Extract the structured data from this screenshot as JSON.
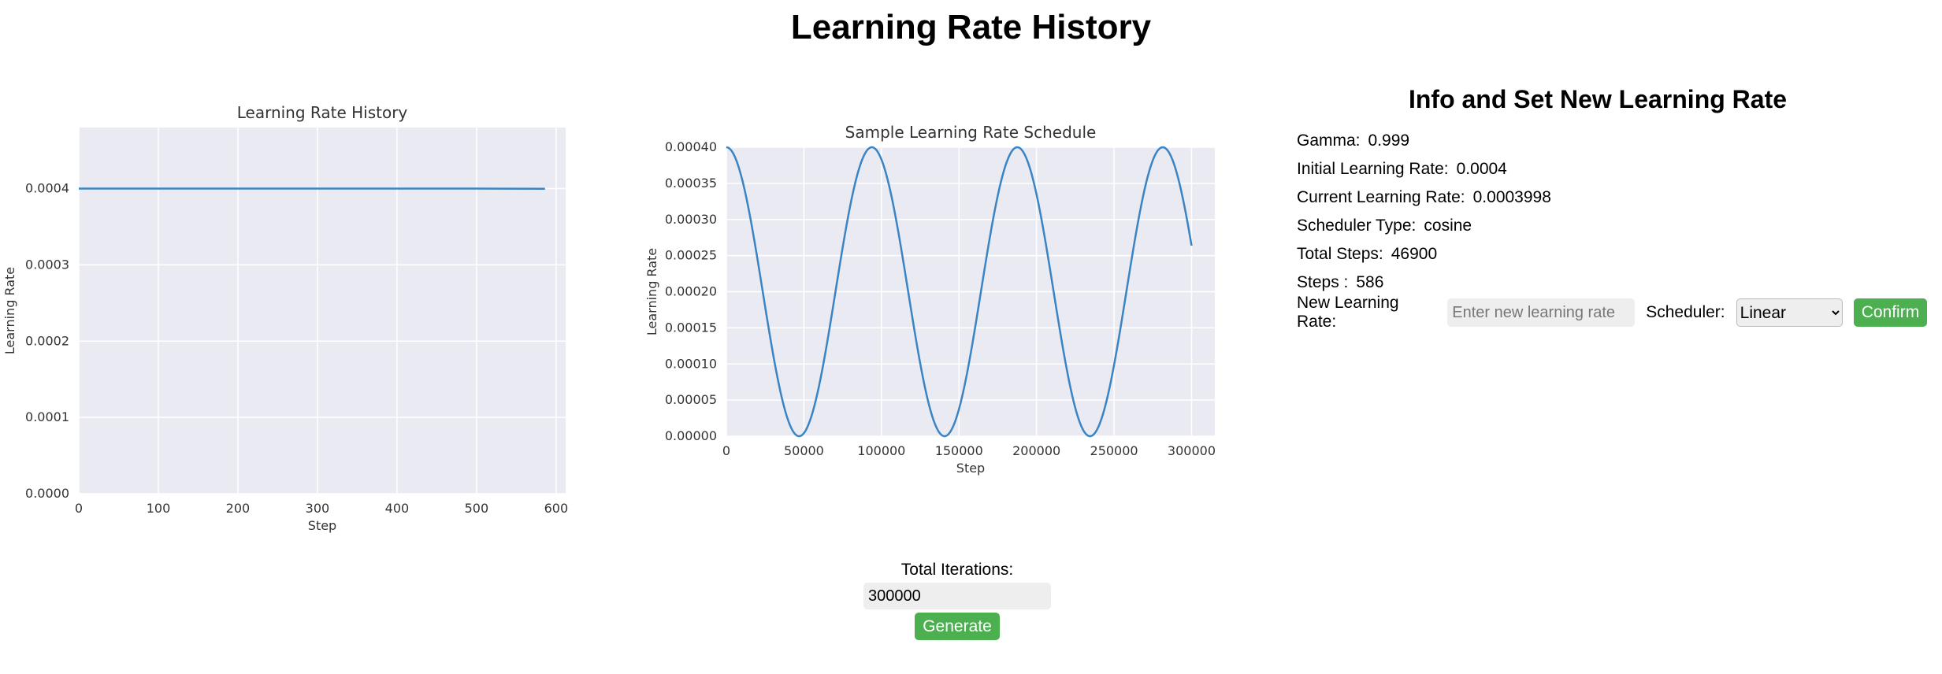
{
  "page": {
    "title": "Learning Rate History"
  },
  "chart_data": [
    {
      "type": "line",
      "title": "Learning Rate History",
      "xlabel": "Step",
      "ylabel": "Learning Rate",
      "xlim": [
        0,
        612
      ],
      "ylim": [
        0,
        0.00048
      ],
      "x_ticks": [
        0,
        100,
        200,
        300,
        400,
        500,
        600
      ],
      "y_ticks": [
        0.0,
        0.0001,
        0.0002,
        0.0003,
        0.0004
      ],
      "x_tick_labels": [
        "0",
        "100",
        "200",
        "300",
        "400",
        "500",
        "600"
      ],
      "y_tick_labels": [
        "0.0000",
        "0.0001",
        "0.0002",
        "0.0003",
        "0.0004"
      ],
      "grid": true,
      "series": [
        {
          "x": [
            0,
            100,
            200,
            300,
            400,
            500,
            586
          ],
          "values": [
            0.0004,
            0.0004,
            0.0004,
            0.0004,
            0.0004,
            0.0004,
            0.0003998
          ]
        }
      ]
    },
    {
      "type": "line",
      "title": "Sample Learning Rate Schedule",
      "xlabel": "Step",
      "ylabel": "Learning Rate",
      "xlim": [
        0,
        315000
      ],
      "ylim": [
        0,
        0.0004
      ],
      "x_ticks": [
        0,
        50000,
        100000,
        150000,
        200000,
        250000,
        300000
      ],
      "y_ticks": [
        0.0,
        5e-05,
        0.0001,
        0.00015,
        0.0002,
        0.00025,
        0.0003,
        0.00035,
        0.0004
      ],
      "x_tick_labels": [
        "0",
        "50000",
        "100000",
        "150000",
        "200000",
        "250000",
        "300000"
      ],
      "y_tick_labels": [
        "0.00000",
        "0.00005",
        "0.00010",
        "0.00015",
        "0.00020",
        "0.00025",
        "0.00030",
        "0.00035",
        "0.00040"
      ],
      "grid": true,
      "series": [
        {
          "x": [
            0,
            11725,
            23450,
            35175,
            46900,
            58625,
            70350,
            82075,
            93800,
            105525,
            117250,
            128975,
            140700,
            152425,
            164150,
            175875,
            187600,
            199325,
            211050,
            222775,
            234500,
            246225,
            257950,
            269675,
            281400,
            293125,
            300000
          ],
          "values": [
            0.0004,
            0.000341,
            0.0002,
            5.86e-05,
            0.0,
            5.86e-05,
            0.0002,
            0.000341,
            0.0004,
            0.000341,
            0.0002,
            5.86e-05,
            0.0,
            5.86e-05,
            0.0002,
            0.000341,
            0.0004,
            0.000341,
            0.0002,
            5.86e-05,
            0.0,
            5.86e-05,
            0.0002,
            0.000341,
            0.0004,
            0.000341,
            0.000264
          ]
        }
      ]
    }
  ],
  "iterations": {
    "label": "Total Iterations:",
    "value": "300000",
    "button": "Generate"
  },
  "info": {
    "title": "Info and Set New Learning Rate",
    "rows": [
      {
        "label": "Gamma:",
        "value": "0.999"
      },
      {
        "label": "Initial Learning Rate:",
        "value": "0.0004"
      },
      {
        "label": "Current Learning Rate:",
        "value": "0.0003998"
      },
      {
        "label": "Scheduler Type:",
        "value": "cosine"
      },
      {
        "label": "Total Steps:",
        "value": "46900"
      },
      {
        "label": "Steps :",
        "value": "586"
      }
    ],
    "new_lr_label": "New Learning Rate:",
    "new_lr_placeholder": "Enter new learning rate",
    "scheduler_label": "Scheduler:",
    "scheduler_selected": "Linear",
    "confirm": "Confirm"
  },
  "colors": {
    "plot_bg": "#eaeaf2",
    "line": "#3a84c4",
    "button": "#4caf50"
  }
}
